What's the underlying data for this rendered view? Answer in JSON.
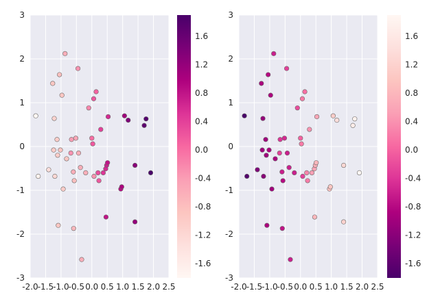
{
  "chart_data": [
    {
      "type": "scatter",
      "xlim": [
        -2.0,
        2.5
      ],
      "ylim": [
        -3,
        3
      ],
      "x_ticks": [
        "-2.0",
        "-1.5",
        "-1.0",
        "-0.5",
        "0.0",
        "0.5",
        "1.0",
        "1.5",
        "2.0",
        "2.5"
      ],
      "y_ticks": [
        "-3",
        "-2",
        "-1",
        "0",
        "1",
        "2",
        "3"
      ],
      "colormap": "RdPu",
      "colorbar": {
        "range": [
          -1.8,
          1.9
        ],
        "ticks": [
          "-1.6",
          "-1.2",
          "-0.8",
          "-0.4",
          "0.0",
          "0.4",
          "0.8",
          "1.2",
          "1.6"
        ],
        "colors": [
          "#fff7f3",
          "#fde0dd",
          "#fcc5c0",
          "#fa9fb5",
          "#f768a1",
          "#dd3497",
          "#ae017e",
          "#7a0177",
          "#49006a"
        ]
      },
      "grid": true,
      "background": "#eaeaf2",
      "points": [
        {
          "x": -1.82,
          "y": 0.7,
          "c": -1.8
        },
        {
          "x": -1.74,
          "y": -0.68,
          "c": -1.7
        },
        {
          "x": -1.4,
          "y": -0.53,
          "c": -1.3
        },
        {
          "x": -1.27,
          "y": 1.44,
          "c": -0.9
        },
        {
          "x": -1.24,
          "y": -0.08,
          "c": -1.0
        },
        {
          "x": -1.22,
          "y": 0.64,
          "c": -1.1
        },
        {
          "x": -1.2,
          "y": -0.68,
          "c": -1.2
        },
        {
          "x": -1.13,
          "y": 0.16,
          "c": -1.0
        },
        {
          "x": -1.11,
          "y": -0.2,
          "c": -1.0
        },
        {
          "x": -1.09,
          "y": -1.8,
          "c": -0.9
        },
        {
          "x": -1.05,
          "y": 1.64,
          "c": -0.8
        },
        {
          "x": -1.02,
          "y": -0.08,
          "c": -0.9
        },
        {
          "x": -0.97,
          "y": 1.17,
          "c": -0.9
        },
        {
          "x": -0.93,
          "y": -0.97,
          "c": -1.0
        },
        {
          "x": -0.87,
          "y": 2.12,
          "c": -0.6
        },
        {
          "x": -0.82,
          "y": -0.28,
          "c": -0.9
        },
        {
          "x": -0.68,
          "y": -0.15,
          "c": -0.3
        },
        {
          "x": -0.66,
          "y": 0.16,
          "c": -0.4
        },
        {
          "x": -0.6,
          "y": -0.58,
          "c": -0.6
        },
        {
          "x": -0.59,
          "y": -1.87,
          "c": -0.7
        },
        {
          "x": -0.57,
          "y": -0.78,
          "c": -0.8
        },
        {
          "x": -0.52,
          "y": 0.19,
          "c": -0.5
        },
        {
          "x": -0.45,
          "y": 1.78,
          "c": -0.3
        },
        {
          "x": -0.43,
          "y": -0.15,
          "c": -0.6
        },
        {
          "x": -0.37,
          "y": -0.48,
          "c": -0.6
        },
        {
          "x": -0.33,
          "y": -2.58,
          "c": -0.6
        },
        {
          "x": -0.2,
          "y": -0.6,
          "c": -0.6
        },
        {
          "x": -0.1,
          "y": 0.88,
          "c": -0.2
        },
        {
          "x": 0.0,
          "y": 0.19,
          "c": 0.0
        },
        {
          "x": 0.03,
          "y": 0.06,
          "c": 0.2
        },
        {
          "x": 0.07,
          "y": -0.68,
          "c": -0.3
        },
        {
          "x": 0.06,
          "y": 1.09,
          "c": 0.2
        },
        {
          "x": 0.14,
          "y": 1.25,
          "c": 0.1
        },
        {
          "x": 0.2,
          "y": -0.6,
          "c": 0.3
        },
        {
          "x": 0.23,
          "y": -0.78,
          "c": 0.2
        },
        {
          "x": 0.29,
          "y": 0.39,
          "c": 0.4
        },
        {
          "x": 0.37,
          "y": -0.6,
          "c": 0.5
        },
        {
          "x": 0.45,
          "y": -0.51,
          "c": 0.6
        },
        {
          "x": 0.46,
          "y": -1.61,
          "c": 0.8
        },
        {
          "x": 0.48,
          "y": -0.43,
          "c": 0.7
        },
        {
          "x": 0.51,
          "y": -0.37,
          "c": 0.8
        },
        {
          "x": 0.53,
          "y": 0.68,
          "c": 0.6
        },
        {
          "x": 0.94,
          "y": -0.97,
          "c": 0.9
        },
        {
          "x": 0.97,
          "y": -0.92,
          "c": 1.0
        },
        {
          "x": 1.06,
          "y": 0.7,
          "c": 1.1
        },
        {
          "x": 1.18,
          "y": 0.6,
          "c": 1.4
        },
        {
          "x": 1.4,
          "y": -0.43,
          "c": 1.3
        },
        {
          "x": 1.4,
          "y": -1.72,
          "c": 1.2
        },
        {
          "x": 1.7,
          "y": 0.48,
          "c": 1.7
        },
        {
          "x": 1.76,
          "y": 0.63,
          "c": 1.8
        },
        {
          "x": 1.91,
          "y": -0.6,
          "c": 1.9
        }
      ]
    },
    {
      "type": "scatter",
      "xlim": [
        -2.0,
        2.5
      ],
      "ylim": [
        -3,
        3
      ],
      "x_ticks": [
        "-2.0",
        "-1.5",
        "-1.0",
        "-0.5",
        "0.0",
        "0.5",
        "1.0",
        "1.5",
        "2.0",
        "2.5"
      ],
      "y_ticks": [
        "-3",
        "-2",
        "-1",
        "0",
        "1",
        "2",
        "3"
      ],
      "colormap": "RdPu_r",
      "colorbar": {
        "range": [
          -1.8,
          1.9
        ],
        "ticks": [
          "-1.6",
          "-1.2",
          "-0.8",
          "-0.4",
          "0.0",
          "0.4",
          "0.8",
          "1.2",
          "1.6"
        ],
        "colors": [
          "#49006a",
          "#7a0177",
          "#ae017e",
          "#dd3497",
          "#f768a1",
          "#fa9fb5",
          "#fcc5c0",
          "#fde0dd",
          "#fff7f3"
        ]
      },
      "grid": true,
      "background": "#eaeaf2",
      "points": [
        {
          "x": -1.82,
          "y": 0.7,
          "c": -1.8
        },
        {
          "x": -1.74,
          "y": -0.68,
          "c": -1.7
        },
        {
          "x": -1.4,
          "y": -0.53,
          "c": -1.3
        },
        {
          "x": -1.27,
          "y": 1.44,
          "c": -0.9
        },
        {
          "x": -1.24,
          "y": -0.08,
          "c": -1.0
        },
        {
          "x": -1.22,
          "y": 0.64,
          "c": -1.1
        },
        {
          "x": -1.2,
          "y": -0.68,
          "c": -1.2
        },
        {
          "x": -1.13,
          "y": 0.16,
          "c": -1.0
        },
        {
          "x": -1.11,
          "y": -0.2,
          "c": -1.0
        },
        {
          "x": -1.09,
          "y": -1.8,
          "c": -0.9
        },
        {
          "x": -1.05,
          "y": 1.64,
          "c": -0.8
        },
        {
          "x": -1.02,
          "y": -0.08,
          "c": -0.9
        },
        {
          "x": -0.97,
          "y": 1.17,
          "c": -0.9
        },
        {
          "x": -0.93,
          "y": -0.97,
          "c": -1.0
        },
        {
          "x": -0.87,
          "y": 2.12,
          "c": -0.6
        },
        {
          "x": -0.82,
          "y": -0.28,
          "c": -0.9
        },
        {
          "x": -0.68,
          "y": -0.15,
          "c": -0.3
        },
        {
          "x": -0.66,
          "y": 0.16,
          "c": -0.4
        },
        {
          "x": -0.6,
          "y": -0.58,
          "c": -0.6
        },
        {
          "x": -0.59,
          "y": -1.87,
          "c": -0.7
        },
        {
          "x": -0.57,
          "y": -0.78,
          "c": -0.8
        },
        {
          "x": -0.52,
          "y": 0.19,
          "c": -0.5
        },
        {
          "x": -0.45,
          "y": 1.78,
          "c": -0.3
        },
        {
          "x": -0.43,
          "y": -0.15,
          "c": -0.6
        },
        {
          "x": -0.37,
          "y": -0.48,
          "c": -0.6
        },
        {
          "x": -0.33,
          "y": -2.58,
          "c": -0.6
        },
        {
          "x": -0.2,
          "y": -0.6,
          "c": -0.6
        },
        {
          "x": -0.1,
          "y": 0.88,
          "c": -0.2
        },
        {
          "x": 0.0,
          "y": 0.19,
          "c": 0.0
        },
        {
          "x": 0.03,
          "y": 0.06,
          "c": 0.2
        },
        {
          "x": 0.07,
          "y": -0.68,
          "c": -0.3
        },
        {
          "x": 0.06,
          "y": 1.09,
          "c": 0.2
        },
        {
          "x": 0.14,
          "y": 1.25,
          "c": 0.1
        },
        {
          "x": 0.2,
          "y": -0.6,
          "c": 0.3
        },
        {
          "x": 0.23,
          "y": -0.78,
          "c": 0.2
        },
        {
          "x": 0.29,
          "y": 0.39,
          "c": 0.4
        },
        {
          "x": 0.37,
          "y": -0.6,
          "c": 0.5
        },
        {
          "x": 0.45,
          "y": -0.51,
          "c": 0.6
        },
        {
          "x": 0.46,
          "y": -1.61,
          "c": 0.8
        },
        {
          "x": 0.48,
          "y": -0.43,
          "c": 0.7
        },
        {
          "x": 0.51,
          "y": -0.37,
          "c": 0.8
        },
        {
          "x": 0.53,
          "y": 0.68,
          "c": 0.6
        },
        {
          "x": 0.94,
          "y": -0.97,
          "c": 0.9
        },
        {
          "x": 0.97,
          "y": -0.92,
          "c": 1.0
        },
        {
          "x": 1.06,
          "y": 0.7,
          "c": 1.1
        },
        {
          "x": 1.18,
          "y": 0.6,
          "c": 1.4
        },
        {
          "x": 1.4,
          "y": -0.43,
          "c": 1.3
        },
        {
          "x": 1.4,
          "y": -1.72,
          "c": 1.2
        },
        {
          "x": 1.7,
          "y": 0.48,
          "c": 1.7
        },
        {
          "x": 1.76,
          "y": 0.63,
          "c": 1.8
        },
        {
          "x": 1.91,
          "y": -0.6,
          "c": 1.9
        }
      ]
    }
  ]
}
